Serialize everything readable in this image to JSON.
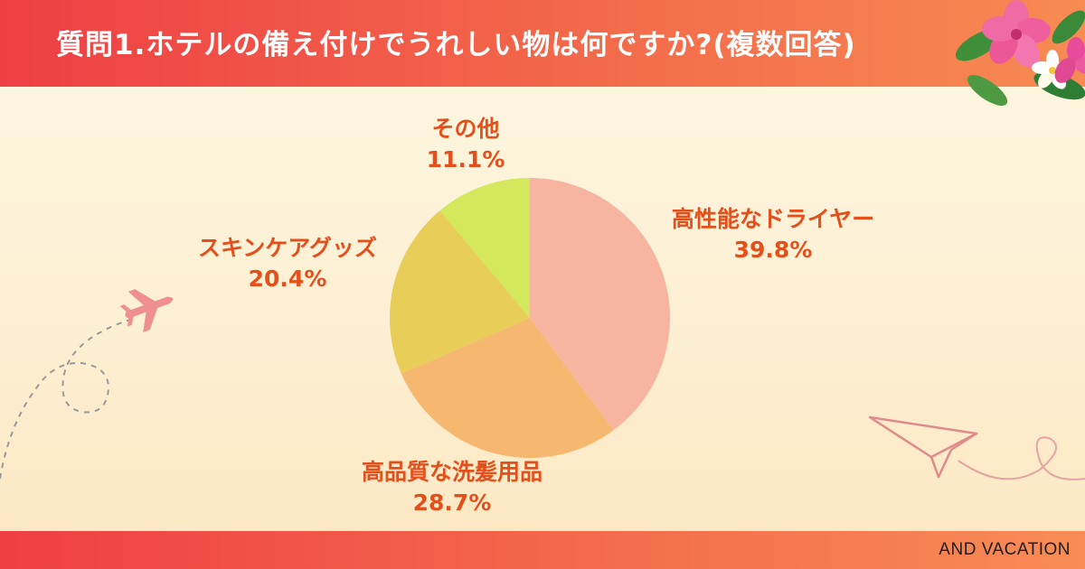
{
  "header": {
    "title": "質問1.ホテルの備え付けでうれしい物は何ですか?(複数回答)"
  },
  "footer": {
    "brand": "AND VACATION"
  },
  "colors": {
    "label_text": "#e3501c",
    "header_start": "#ee3f45",
    "header_end": "#f78b52"
  },
  "chart_data": {
    "type": "pie",
    "start_angle_deg": 0,
    "direction": "clockwise",
    "slices": [
      {
        "label": "高性能なドライヤー",
        "value": 39.8,
        "display": "39.8%",
        "color": "#f7b5a1"
      },
      {
        "label": "高品質な洗髪用品",
        "value": 28.7,
        "display": "28.7%",
        "color": "#f6b870"
      },
      {
        "label": "スキンケアグッズ",
        "value": 20.4,
        "display": "20.4%",
        "color": "#e8cd58"
      },
      {
        "label": "その他",
        "value": 11.1,
        "display": "11.1%",
        "color": "#d3e85c"
      }
    ]
  }
}
